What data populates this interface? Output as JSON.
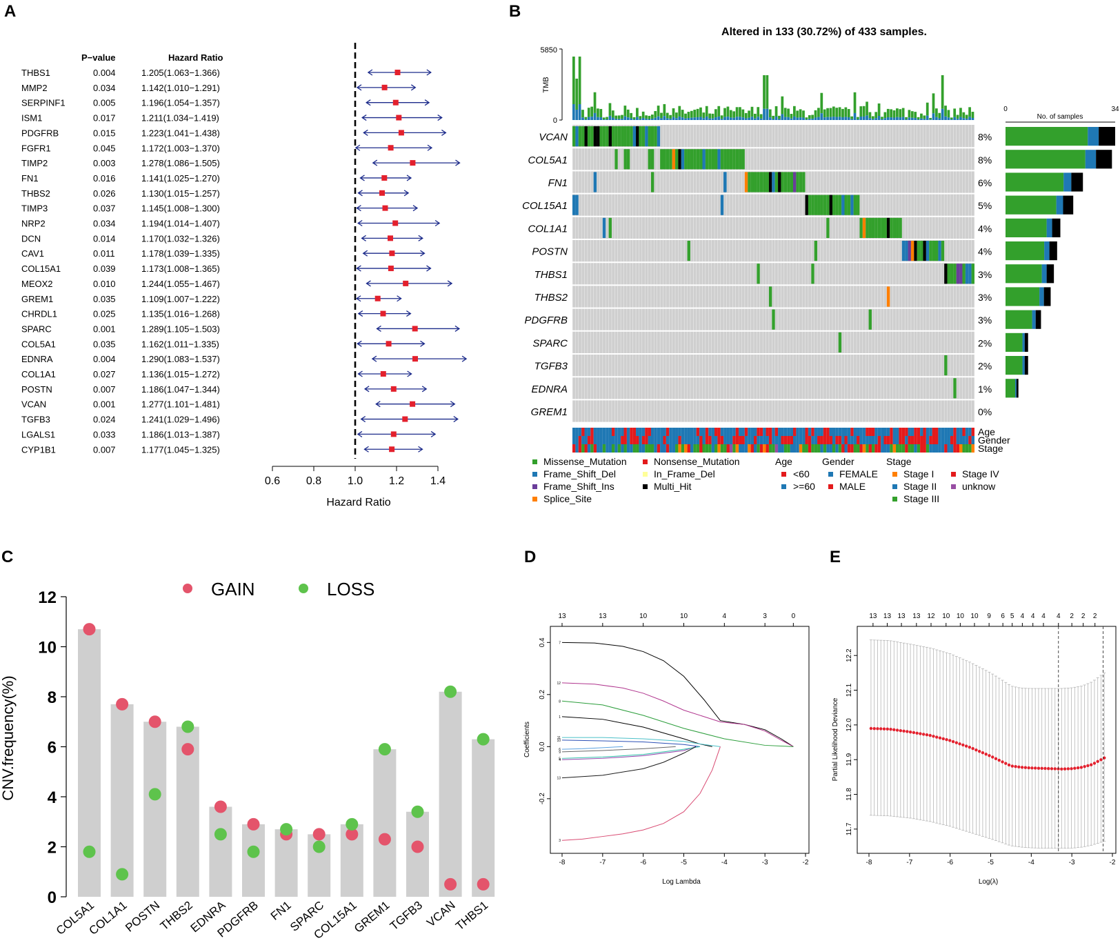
{
  "chart_data": [
    {
      "panel": "A",
      "type": "forest",
      "panel_label": "A",
      "col_pvalue": "P−value",
      "col_hr": "Hazard Ratio",
      "xlabel": "Hazard Ratio",
      "xlim": [
        0.6,
        1.4
      ],
      "xticks": [
        "0.6",
        "0.8",
        "1.0",
        "1.2",
        "1.4"
      ],
      "xtick_values": [
        0.6,
        0.8,
        1.0,
        1.2,
        1.4
      ],
      "reference_line": 1.0,
      "rows": [
        {
          "gene": "THBS1",
          "p": "0.004",
          "hr_text": "1.205(1.063−1.366)",
          "hr": 1.205,
          "lo": 1.063,
          "hi": 1.366
        },
        {
          "gene": "MMP2",
          "p": "0.034",
          "hr_text": "1.142(1.010−1.291)",
          "hr": 1.142,
          "lo": 1.01,
          "hi": 1.291
        },
        {
          "gene": "SERPINF1",
          "p": "0.005",
          "hr_text": "1.196(1.054−1.357)",
          "hr": 1.196,
          "lo": 1.054,
          "hi": 1.357
        },
        {
          "gene": "ISM1",
          "p": "0.017",
          "hr_text": "1.211(1.034−1.419)",
          "hr": 1.211,
          "lo": 1.034,
          "hi": 1.419
        },
        {
          "gene": "PDGFRB",
          "p": "0.015",
          "hr_text": "1.223(1.041−1.438)",
          "hr": 1.223,
          "lo": 1.041,
          "hi": 1.438
        },
        {
          "gene": "FGFR1",
          "p": "0.045",
          "hr_text": "1.172(1.003−1.370)",
          "hr": 1.172,
          "lo": 1.003,
          "hi": 1.37
        },
        {
          "gene": "TIMP2",
          "p": "0.003",
          "hr_text": "1.278(1.086−1.505)",
          "hr": 1.278,
          "lo": 1.086,
          "hi": 1.505
        },
        {
          "gene": "FN1",
          "p": "0.016",
          "hr_text": "1.141(1.025−1.270)",
          "hr": 1.141,
          "lo": 1.025,
          "hi": 1.27
        },
        {
          "gene": "THBS2",
          "p": "0.026",
          "hr_text": "1.130(1.015−1.257)",
          "hr": 1.13,
          "lo": 1.015,
          "hi": 1.257
        },
        {
          "gene": "TIMP3",
          "p": "0.037",
          "hr_text": "1.145(1.008−1.300)",
          "hr": 1.145,
          "lo": 1.008,
          "hi": 1.3
        },
        {
          "gene": "NRP2",
          "p": "0.034",
          "hr_text": "1.194(1.014−1.407)",
          "hr": 1.194,
          "lo": 1.014,
          "hi": 1.407
        },
        {
          "gene": "DCN",
          "p": "0.014",
          "hr_text": "1.170(1.032−1.326)",
          "hr": 1.17,
          "lo": 1.032,
          "hi": 1.326
        },
        {
          "gene": "CAV1",
          "p": "0.011",
          "hr_text": "1.178(1.039−1.335)",
          "hr": 1.178,
          "lo": 1.039,
          "hi": 1.335
        },
        {
          "gene": "COL15A1",
          "p": "0.039",
          "hr_text": "1.173(1.008−1.365)",
          "hr": 1.173,
          "lo": 1.008,
          "hi": 1.365
        },
        {
          "gene": "MEOX2",
          "p": "0.010",
          "hr_text": "1.244(1.055−1.467)",
          "hr": 1.244,
          "lo": 1.055,
          "hi": 1.467
        },
        {
          "gene": "GREM1",
          "p": "0.035",
          "hr_text": "1.109(1.007−1.222)",
          "hr": 1.109,
          "lo": 1.007,
          "hi": 1.222
        },
        {
          "gene": "CHRDL1",
          "p": "0.025",
          "hr_text": "1.135(1.016−1.268)",
          "hr": 1.135,
          "lo": 1.016,
          "hi": 1.268
        },
        {
          "gene": "SPARC",
          "p": "0.001",
          "hr_text": "1.289(1.105−1.503)",
          "hr": 1.289,
          "lo": 1.105,
          "hi": 1.503
        },
        {
          "gene": "COL5A1",
          "p": "0.035",
          "hr_text": "1.162(1.011−1.335)",
          "hr": 1.162,
          "lo": 1.011,
          "hi": 1.335
        },
        {
          "gene": "EDNRA",
          "p": "0.004",
          "hr_text": "1.290(1.083−1.537)",
          "hr": 1.29,
          "lo": 1.083,
          "hi": 1.537
        },
        {
          "gene": "COL1A1",
          "p": "0.027",
          "hr_text": "1.136(1.015−1.272)",
          "hr": 1.136,
          "lo": 1.015,
          "hi": 1.272
        },
        {
          "gene": "POSTN",
          "p": "0.007",
          "hr_text": "1.186(1.047−1.344)",
          "hr": 1.186,
          "lo": 1.047,
          "hi": 1.344
        },
        {
          "gene": "VCAN",
          "p": "0.001",
          "hr_text": "1.277(1.101−1.481)",
          "hr": 1.277,
          "lo": 1.101,
          "hi": 1.481
        },
        {
          "gene": "TGFB3",
          "p": "0.024",
          "hr_text": "1.241(1.029−1.496)",
          "hr": 1.241,
          "lo": 1.029,
          "hi": 1.496
        },
        {
          "gene": "LGALS1",
          "p": "0.033",
          "hr_text": "1.186(1.013−1.387)",
          "hr": 1.186,
          "lo": 1.013,
          "hi": 1.387
        },
        {
          "gene": "CYP1B1",
          "p": "0.007",
          "hr_text": "1.177(1.045−1.325)",
          "hr": 1.177,
          "lo": 1.045,
          "hi": 1.325
        }
      ]
    },
    {
      "panel": "B",
      "type": "oncoplot",
      "panel_label": "B",
      "title": "Altered in 133 (30.72%) of 433 samples.",
      "tmb_label": "TMB",
      "tmb_max": "5850",
      "tmb_min": "0",
      "side_label": "No. of samples",
      "side_min": "0",
      "side_max": "34",
      "side_max_value": 34,
      "genes": [
        {
          "name": "VCAN",
          "pct": "8%",
          "count": 34
        },
        {
          "name": "COL5A1",
          "pct": "8%",
          "count": 33
        },
        {
          "name": "FN1",
          "pct": "6%",
          "count": 24
        },
        {
          "name": "COL15A1",
          "pct": "5%",
          "count": 21
        },
        {
          "name": "COL1A1",
          "pct": "4%",
          "count": 17
        },
        {
          "name": "POSTN",
          "pct": "4%",
          "count": 16
        },
        {
          "name": "THBS1",
          "pct": "3%",
          "count": 15
        },
        {
          "name": "THBS2",
          "pct": "3%",
          "count": 14
        },
        {
          "name": "PDGFRB",
          "pct": "3%",
          "count": 11
        },
        {
          "name": "SPARC",
          "pct": "2%",
          "count": 7
        },
        {
          "name": "TGFB3",
          "pct": "2%",
          "count": 7
        },
        {
          "name": "EDNRA",
          "pct": "1%",
          "count": 4
        },
        {
          "name": "GREM1",
          "pct": "0%",
          "count": 0
        }
      ],
      "annotation_rows": [
        "Age",
        "Gender",
        "Stage"
      ],
      "legend_mutations": [
        {
          "label": "Missense_Mutation",
          "color": "#33a02c"
        },
        {
          "label": "Nonsense_Mutation",
          "color": "#e31a1c"
        },
        {
          "label": "Frame_Shift_Del",
          "color": "#1f78b4"
        },
        {
          "label": "In_Frame_Del",
          "color": "#ffff99"
        },
        {
          "label": "Frame_Shift_Ins",
          "color": "#6a3d9a"
        },
        {
          "label": "Multi_Hit",
          "color": "#000000"
        },
        {
          "label": "Splice_Site",
          "color": "#ff7f00"
        }
      ],
      "legend_age_title": "Age",
      "legend_age": [
        {
          "label": "<60",
          "color": "#e31a1c"
        },
        {
          "label": ">=60",
          "color": "#1f78b4"
        }
      ],
      "legend_gender_title": "Gender",
      "legend_gender": [
        {
          "label": "FEMALE",
          "color": "#1f78b4"
        },
        {
          "label": "MALE",
          "color": "#e31a1c"
        }
      ],
      "legend_stage_title": "Stage",
      "legend_stage": [
        {
          "label": "Stage I",
          "color": "#ff7f00"
        },
        {
          "label": "Stage IV",
          "color": "#e31a1c"
        },
        {
          "label": "Stage II",
          "color": "#1f78b4"
        },
        {
          "label": "unknow",
          "color": "#984ea3"
        },
        {
          "label": "Stage III",
          "color": "#33a02c"
        }
      ]
    },
    {
      "panel": "C",
      "type": "bar",
      "panel_label": "C",
      "ylabel": "CNV.frequency(%)",
      "ylim": [
        0,
        12
      ],
      "yticks": [
        "0",
        "2",
        "4",
        "6",
        "8",
        "10",
        "12"
      ],
      "ytick_values": [
        0,
        2,
        4,
        6,
        8,
        10,
        12
      ],
      "legend": [
        {
          "label": "GAIN",
          "color": "#e4546b"
        },
        {
          "label": "LOSS",
          "color": "#5ec34c"
        }
      ],
      "categories": [
        "COL5A1",
        "COL1A1",
        "POSTN",
        "THBS2",
        "EDNRA",
        "PDGFRB",
        "FN1",
        "SPARC",
        "COL15A1",
        "GREM1",
        "TGFB3",
        "VCAN",
        "THBS1"
      ],
      "bar_values": [
        10.7,
        7.7,
        7.0,
        6.8,
        3.6,
        2.9,
        2.7,
        2.5,
        2.9,
        5.9,
        3.4,
        8.2,
        6.3
      ],
      "gain": [
        10.7,
        7.7,
        7.0,
        5.9,
        3.6,
        2.9,
        2.5,
        2.5,
        2.5,
        2.3,
        2.0,
        0.5,
        0.5
      ],
      "loss": [
        1.8,
        0.9,
        4.1,
        6.8,
        2.5,
        1.8,
        2.7,
        2.0,
        2.9,
        5.9,
        3.4,
        8.2,
        6.3
      ]
    },
    {
      "panel": "D",
      "type": "line",
      "panel_label": "D",
      "xlabel": "Log Lambda",
      "ylabel": "Coefficients",
      "xlim": [
        -8,
        -2
      ],
      "ylim": [
        -0.37,
        0.43
      ],
      "xticks": [
        "-8",
        "-7",
        "-6",
        "-5",
        "-4",
        "-3",
        "-2"
      ],
      "xtick_values": [
        -8,
        -7,
        -6,
        -5,
        -4,
        -3,
        -2
      ],
      "yticks": [
        "-0.2",
        "0.0",
        "0.2",
        "0.4"
      ],
      "ytick_values": [
        -0.2,
        0.0,
        0.2,
        0.4
      ],
      "top_ticks": [
        "13",
        "13",
        "10",
        "10",
        "4",
        "3",
        "0"
      ],
      "top_tick_values": [
        -8,
        -7,
        -6,
        -5,
        -4,
        -3,
        -2.3
      ],
      "series": [
        {
          "name": "7",
          "color": "#000000",
          "x": [
            -8,
            -7.2,
            -6.5,
            -6,
            -5.5,
            -5,
            -4.5,
            -4.1,
            -3.5,
            -3,
            -2.6,
            -2.3
          ],
          "y": [
            0.4,
            0.398,
            0.385,
            0.365,
            0.33,
            0.27,
            0.18,
            0.1,
            0.085,
            0.065,
            0.03,
            0
          ]
        },
        {
          "name": "12",
          "color": "#b0358e",
          "x": [
            -8,
            -7.2,
            -6.5,
            -6,
            -5.5,
            -5,
            -4.5,
            -4.1,
            -3.5,
            -3,
            -2.6,
            -2.3
          ],
          "y": [
            0.245,
            0.24,
            0.225,
            0.205,
            0.175,
            0.14,
            0.115,
            0.095,
            0.085,
            0.06,
            0.025,
            0
          ]
        },
        {
          "name": "8",
          "color": "#2a9d3a",
          "x": [
            -8,
            -7,
            -6,
            -5,
            -4,
            -3,
            -2.3
          ],
          "y": [
            0.175,
            0.16,
            0.12,
            0.07,
            0.03,
            0.005,
            0
          ]
        },
        {
          "name": "1",
          "color": "#000000",
          "x": [
            -8,
            -7,
            -6,
            -5,
            -4.6,
            -4.3
          ],
          "y": [
            0.115,
            0.105,
            0.075,
            0.03,
            0.01,
            0
          ]
        },
        {
          "name": "11",
          "color": "#4bc0c8",
          "x": [
            -8,
            -7,
            -6,
            -5,
            -4.5,
            -4.1
          ],
          "y": [
            0.035,
            0.035,
            0.03,
            0.02,
            0.008,
            0
          ]
        },
        {
          "name": "10",
          "color": "#2b4fb5",
          "x": [
            -8,
            -7,
            -6,
            -5,
            -4.6
          ],
          "y": [
            0.025,
            0.022,
            0.018,
            0.008,
            0
          ]
        },
        {
          "name": "6",
          "color": "#5aa1e0",
          "x": [
            -8,
            -7.5,
            -7,
            -6.5
          ],
          "y": [
            -0.01,
            -0.008,
            -0.004,
            0
          ]
        },
        {
          "name": "9",
          "color": "#666666",
          "x": [
            -8,
            -7,
            -6,
            -5.2
          ],
          "y": [
            -0.02,
            -0.015,
            -0.008,
            0
          ]
        },
        {
          "name": "4",
          "color": "#8b3da8",
          "x": [
            -8,
            -7,
            -6,
            -5,
            -4.7
          ],
          "y": [
            -0.05,
            -0.045,
            -0.035,
            -0.015,
            0
          ]
        },
        {
          "name": "5",
          "color": "#2dbfa8",
          "x": [
            -8,
            -7,
            -6,
            -5,
            -4.6
          ],
          "y": [
            -0.045,
            -0.04,
            -0.03,
            -0.01,
            0
          ]
        },
        {
          "name": "13",
          "color": "#1a1a1a",
          "x": [
            -8,
            -7,
            -6,
            -5.5,
            -5,
            -4.7
          ],
          "y": [
            -0.12,
            -0.11,
            -0.085,
            -0.06,
            -0.025,
            0
          ]
        },
        {
          "name": "3",
          "color": "#d94a72",
          "x": [
            -8,
            -7.5,
            -7,
            -6.5,
            -6,
            -5.5,
            -5,
            -4.6,
            -4.3,
            -4.1
          ],
          "y": [
            -0.36,
            -0.355,
            -0.345,
            -0.335,
            -0.32,
            -0.295,
            -0.25,
            -0.18,
            -0.09,
            0
          ]
        }
      ]
    },
    {
      "panel": "E",
      "type": "scatter",
      "panel_label": "E",
      "xlabel": "Log(λ)",
      "ylabel": "Partial Likelihood Deviance",
      "xlim": [
        -8,
        -2
      ],
      "ylim": [
        11.66,
        12.26
      ],
      "xticks": [
        "-8",
        "-7",
        "-6",
        "-5",
        "-4",
        "-3",
        "-2"
      ],
      "xtick_values": [
        -8,
        -7,
        -6,
        -5,
        -4,
        -3,
        -2
      ],
      "yticks": [
        "11.7",
        "11.8",
        "11.9",
        "12.0",
        "12.1",
        "12.2"
      ],
      "ytick_values": [
        11.7,
        11.8,
        11.9,
        12.0,
        12.1,
        12.2
      ],
      "top_ticks": [
        "13",
        "13",
        "13",
        "13",
        "12",
        "10",
        "10",
        "10",
        "9",
        "6",
        "5",
        "4",
        "4",
        "4",
        "4",
        "2",
        "2",
        "2"
      ],
      "top_tick_values": [
        -7.9,
        -7.55,
        -7.2,
        -6.83,
        -6.47,
        -6.1,
        -5.75,
        -5.4,
        -5.04,
        -4.7,
        -4.47,
        -4.22,
        -3.96,
        -3.7,
        -3.33,
        -3.0,
        -2.72,
        -2.43
      ],
      "vlines": [
        -3.33,
        -2.23
      ],
      "curve": {
        "x": [
          -8,
          -7.5,
          -7,
          -6.5,
          -6,
          -5.5,
          -5,
          -4.7,
          -4.5,
          -4.25,
          -4,
          -3.75,
          -3.5,
          -3.25,
          -3,
          -2.75,
          -2.5,
          -2.2
        ],
        "y": [
          11.99,
          11.988,
          11.98,
          11.97,
          11.955,
          11.935,
          11.91,
          11.893,
          11.882,
          11.878,
          11.876,
          11.875,
          11.874,
          11.873,
          11.874,
          11.878,
          11.886,
          11.905
        ]
      },
      "band_upper": {
        "x": [
          -8,
          -7.5,
          -7,
          -6.5,
          -6,
          -5.5,
          -5,
          -4.7,
          -4.5,
          -4.25,
          -4,
          -3.75,
          -3.5,
          -3.25,
          -3,
          -2.75,
          -2.5,
          -2.2
        ],
        "y": [
          12.245,
          12.243,
          12.233,
          12.222,
          12.205,
          12.18,
          12.15,
          12.128,
          12.112,
          12.106,
          12.105,
          12.105,
          12.105,
          12.105,
          12.107,
          12.112,
          12.124,
          12.15
        ]
      },
      "band_lower": {
        "x": [
          -8,
          -7.5,
          -7,
          -6.5,
          -6,
          -5.5,
          -5,
          -4.7,
          -4.5,
          -4.25,
          -4,
          -3.75,
          -3.5,
          -3.25,
          -3,
          -2.75,
          -2.5,
          -2.2
        ],
        "y": [
          11.74,
          11.738,
          11.732,
          11.722,
          11.708,
          11.69,
          11.672,
          11.66,
          11.652,
          11.648,
          11.646,
          11.645,
          11.645,
          11.645,
          11.645,
          11.648,
          11.654,
          11.665
        ]
      }
    }
  ]
}
